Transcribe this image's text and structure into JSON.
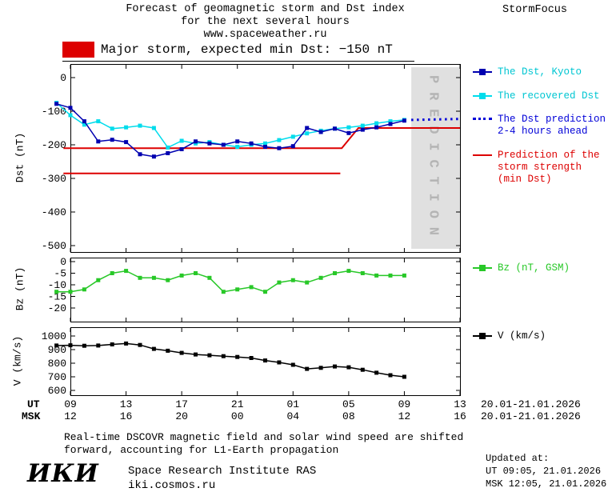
{
  "header": {
    "title_line1": "Forecast of geomagnetic storm and Dst index",
    "title_line2": "for the next several hours",
    "website": "www.spaceweather.ru",
    "brand": "StormFocus",
    "storm_label": "Major storm, expected min Dst: −150 nT"
  },
  "legend": {
    "dst_kyoto": "The Dst, Kyoto",
    "recovered": "The recovered Dst",
    "prediction": "The Dst prediction\n2-4 hours ahead",
    "storm_strength": "Prediction of the\nstorm strength\n(min Dst)",
    "bz": "Bz (nT, GSM)",
    "v": "V (km/s)"
  },
  "axis": {
    "ut_label": "UT",
    "msk_label": "MSK",
    "ut_date_range": "20.01-21.01.2026",
    "msk_date_range": "20.01-21.01.2026"
  },
  "footer": {
    "note_line1": "Real-time DSCOVR magnetic field and solar wind speed are shifted",
    "note_line2": "forward, accounting for L1-Earth propagation",
    "logo": "ИКИ",
    "institute": "Space Research Institute RAS",
    "institute_site": "iki.cosmos.ru",
    "updated_label": "Updated at:",
    "updated_ut": "UT  09:05, 21.01.2026",
    "updated_msk": "MSK 12:05, 21.01.2026"
  },
  "colors": {
    "dst_kyoto": "#0000b0",
    "recovered": "#00dcec",
    "prediction": "#0000d8",
    "storm_red": "#dd0000",
    "bz_green": "#28c828",
    "v_black": "#000000",
    "band_gray": "#e0e0e0",
    "band_text": "#b4b4b4",
    "legend_cyan_text": "#00c6d2"
  },
  "chart_data": {
    "type": "line",
    "x_axis": {
      "axis_xlim": [
        0,
        28
      ],
      "tick_hours": [
        0,
        4,
        8,
        12,
        16,
        20,
        24,
        28
      ],
      "ut_labels": [
        "09",
        "13",
        "17",
        "21",
        "01",
        "05",
        "09",
        "13"
      ],
      "msk_labels": [
        "12",
        "16",
        "20",
        "00",
        "04",
        "08",
        "12",
        "16"
      ]
    },
    "dst": {
      "ylabel": "Dst (nT)",
      "ylim": [
        -500,
        0
      ],
      "ytick_values": [
        0,
        -100,
        -200,
        -300,
        -400,
        -500
      ],
      "ytick_labels": [
        "0",
        "-100",
        "-200",
        "-300",
        "-400",
        "-500"
      ],
      "prediction_band": {
        "from_hour": 24.5,
        "to_hour": 28,
        "label": "PREDICTION"
      },
      "series": [
        {
          "id": "recovered-dst",
          "name": "The recovered Dst",
          "color": "#00dcec",
          "marker": true,
          "marker_size": 5,
          "x_start": -1,
          "x_step": 1,
          "values": [
            -75,
            -112,
            -140,
            -130,
            -152,
            -148,
            -143,
            -150,
            -208,
            -188,
            -196,
            -192,
            -200,
            -206,
            -200,
            -196,
            -186,
            -176,
            -166,
            -158,
            -152,
            -148,
            -143,
            -136,
            -130,
            -126
          ]
        },
        {
          "id": "dst-kyoto",
          "name": "The Dst, Kyoto",
          "color": "#0000b0",
          "marker": true,
          "marker_size": 5,
          "x_start": -1,
          "x_step": 1,
          "values": [
            -78,
            -90,
            -130,
            -190,
            -185,
            -192,
            -228,
            -235,
            -225,
            -213,
            -190,
            -196,
            -200,
            -190,
            -196,
            -206,
            -210,
            -204,
            -150,
            -162,
            -152,
            -165,
            -155,
            -148,
            -138,
            -128
          ]
        },
        {
          "id": "dst-prediction",
          "name": "The Dst prediction 2-4 hours ahead",
          "color": "#0000d8",
          "style": "dotted",
          "line_width": 3,
          "x_start": 24.5,
          "x_step": 1.1667,
          "values": [
            -126,
            -125,
            -124,
            -123
          ]
        }
      ],
      "storm_strength_lines": [
        {
          "name": "current storm strength prediction, min Dst -150 nT",
          "color": "#dd0000",
          "points": [
            [
              -0.5,
              -210
            ],
            [
              19.5,
              -210
            ],
            [
              20.7,
              -150
            ],
            [
              28,
              -150
            ]
          ]
        },
        {
          "name": "earlier storm strength prediction",
          "color": "#dd0000",
          "points": [
            [
              -0.5,
              -285
            ],
            [
              19.4,
              -285
            ]
          ]
        }
      ]
    },
    "bz": {
      "ylabel": "Bz (nT)",
      "legend_label": "Bz (nT, GSM)",
      "ylim": [
        -20,
        0
      ],
      "ytick_values": [
        0,
        -5,
        -10,
        -15,
        -20
      ],
      "ytick_labels": [
        "0",
        "-5",
        "-10",
        "-15",
        "-20"
      ],
      "series": [
        {
          "id": "bz-gsm",
          "name": "Bz (nT, GSM)",
          "color": "#28c828",
          "marker": true,
          "marker_size": 5,
          "x_start": -1,
          "x_step": 1,
          "values": [
            -13,
            -13,
            -12,
            -8,
            -5,
            -4,
            -7,
            -7,
            -8,
            -6,
            -5,
            -7,
            -13,
            -12,
            -11,
            -13,
            -9,
            -8,
            -9,
            -7,
            -5,
            -4,
            -5,
            -6,
            -6,
            -6
          ]
        }
      ]
    },
    "v": {
      "ylabel": "V (km/s)",
      "legend_label": "V (km/s)",
      "ylim": [
        600,
        1000
      ],
      "ytick_values": [
        1000,
        900,
        800,
        700,
        600
      ],
      "ytick_labels": [
        "1000",
        "900",
        "800",
        "700",
        "600"
      ],
      "series": [
        {
          "id": "solar-wind-speed",
          "name": "V (km/s)",
          "color": "#000000",
          "marker": true,
          "marker_size": 5,
          "x_start": -1,
          "x_step": 1,
          "values": [
            930,
            932,
            928,
            930,
            938,
            945,
            934,
            905,
            892,
            876,
            864,
            858,
            852,
            846,
            838,
            820,
            806,
            788,
            758,
            766,
            776,
            770,
            752,
            730,
            712,
            700
          ]
        }
      ]
    }
  }
}
